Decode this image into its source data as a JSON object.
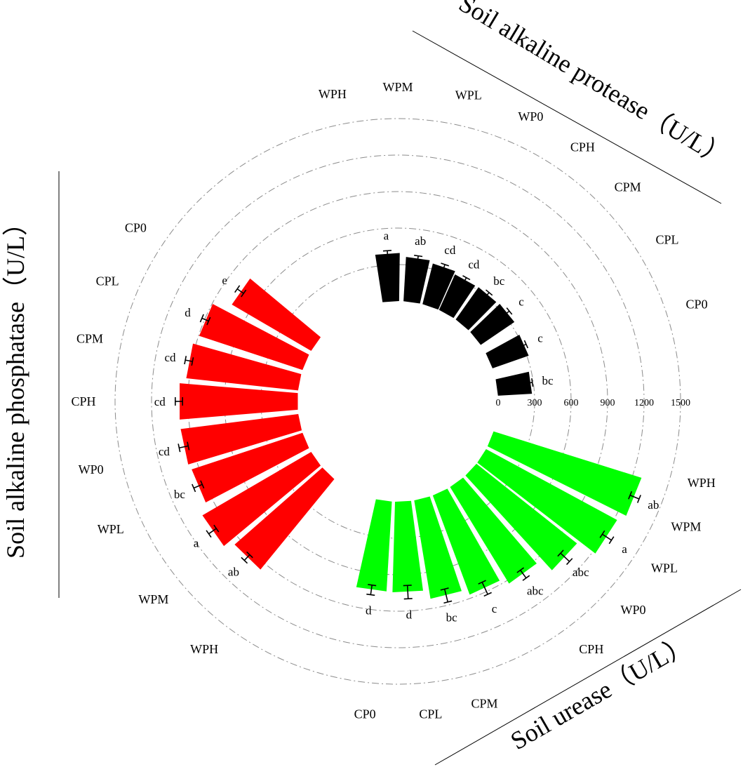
{
  "chart_data": {
    "type": "radial-bar",
    "r_ticks": [
      "0",
      "300",
      "600",
      "900",
      "1200",
      "1500"
    ],
    "r_max": 1500,
    "sections": [
      {
        "title": "Soil alkaline protease（U/L）",
        "color": "#000000",
        "categories": [
          "WPM",
          "WPL",
          "WP0",
          "CPH",
          "CPM",
          "CPL",
          "CP0",
          "WPH"
        ],
        "values": [
          395,
          365,
          345,
          320,
          325,
          335,
          315,
          280
        ],
        "errors": [
          22,
          18,
          20,
          18,
          18,
          20,
          15,
          12
        ],
        "significance": [
          "a",
          "ab",
          "cd",
          "cd",
          "bc",
          "c",
          "c",
          "bc"
        ]
      },
      {
        "title": "Soil urease（U/L）",
        "color": "#00ff00",
        "categories": [
          "WPH",
          "WPM",
          "WPL",
          "WP0",
          "CPH",
          "CPM",
          "CPL",
          "CP0"
        ],
        "values": [
          1275,
          1225,
          1055,
          930,
          870,
          820,
          745,
          740
        ],
        "errors": [
          40,
          45,
          50,
          40,
          55,
          55,
          55,
          40
        ],
        "significance": [
          "ab",
          "a",
          "abc",
          "abc",
          "c",
          "bc",
          "d",
          "d"
        ]
      },
      {
        "title": "Soil alkaline phosphatase（U/L）",
        "color": "#ff0000",
        "categories": [
          "WPH",
          "WPM",
          "WPL",
          "WP0",
          "CPH",
          "CPM",
          "CPL",
          "CP0"
        ],
        "values": [
          960,
          1035,
          960,
          975,
          975,
          925,
          895,
          755
        ],
        "errors": [
          32,
          38,
          38,
          38,
          30,
          30,
          30,
          32
        ],
        "significance": [
          "ab",
          "a",
          "bc",
          "cd",
          "cd",
          "cd",
          "d",
          "e"
        ]
      }
    ]
  }
}
